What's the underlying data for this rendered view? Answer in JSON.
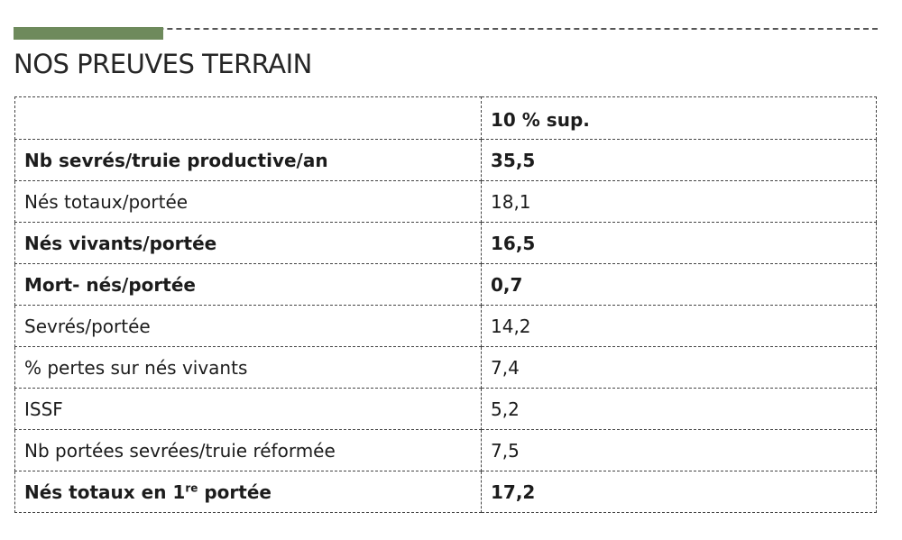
{
  "section": {
    "title": "NOS PREUVES TERRAIN",
    "accent_color": "#6e8a5c"
  },
  "table": {
    "header": {
      "label": "",
      "value": "10 % sup."
    },
    "rows": [
      {
        "label": "Nb sevrés/truie productive/an",
        "value": "35,5",
        "bold": true
      },
      {
        "label": "Nés totaux/portée",
        "value": "18,1",
        "bold": false
      },
      {
        "label": "Nés vivants/portée",
        "value": "16,5",
        "bold": true
      },
      {
        "label": "Mort- nés/portée",
        "value": "0,7",
        "bold": true
      },
      {
        "label": "Sevrés/portée",
        "value": "14,2",
        "bold": false
      },
      {
        "label": "% pertes sur nés vivants",
        "value": "7,4",
        "bold": false
      },
      {
        "label": "ISSF",
        "value": "5,2",
        "bold": false
      },
      {
        "label": "Nb portées sevrées/truie réformée",
        "value": "7,5",
        "bold": false
      },
      {
        "label_prefix": "Nés totaux en 1",
        "label_sup": "re",
        "label_suffix": " portée",
        "value": "17,2",
        "bold": true
      }
    ]
  }
}
